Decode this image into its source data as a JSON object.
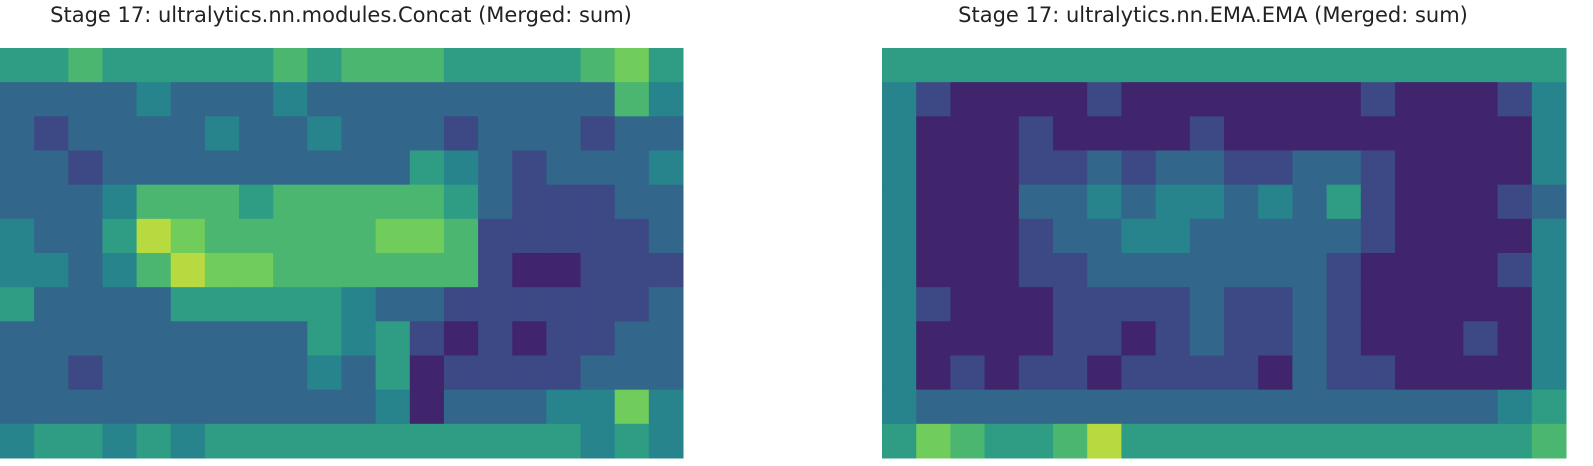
{
  "chart_data": [
    {
      "type": "heatmap",
      "title": "Stage 17: ultralytics.nn.modules.Concat (Merged: sum)",
      "cmap": "viridis",
      "vlim": [
        0,
        9
      ],
      "values": [
        [
          5,
          5,
          6,
          5,
          5,
          5,
          5,
          5,
          6,
          5,
          6,
          6,
          6,
          5,
          5,
          5,
          5,
          6,
          7,
          5
        ],
        [
          3,
          3,
          3,
          3,
          4,
          3,
          3,
          3,
          4,
          3,
          3,
          3,
          3,
          3,
          3,
          3,
          3,
          3,
          6,
          4
        ],
        [
          3,
          2,
          3,
          3,
          3,
          3,
          4,
          3,
          3,
          4,
          3,
          3,
          3,
          2,
          3,
          3,
          3,
          2,
          3,
          3
        ],
        [
          3,
          3,
          2,
          3,
          3,
          3,
          3,
          3,
          3,
          3,
          3,
          3,
          5,
          4,
          3,
          2,
          3,
          3,
          3,
          4
        ],
        [
          3,
          3,
          3,
          4,
          6,
          6,
          6,
          5,
          6,
          6,
          6,
          6,
          6,
          5,
          3,
          2,
          2,
          2,
          3,
          3
        ],
        [
          4,
          3,
          3,
          5,
          8,
          7,
          6,
          6,
          6,
          6,
          6,
          7,
          7,
          6,
          2,
          2,
          2,
          2,
          2,
          3
        ],
        [
          4,
          4,
          3,
          4,
          6,
          8,
          7,
          7,
          6,
          6,
          6,
          6,
          6,
          6,
          2,
          1,
          1,
          2,
          2,
          2
        ],
        [
          5,
          3,
          3,
          3,
          3,
          5,
          5,
          5,
          5,
          5,
          4,
          3,
          3,
          2,
          2,
          2,
          2,
          2,
          2,
          3
        ],
        [
          3,
          3,
          3,
          3,
          3,
          3,
          3,
          3,
          3,
          5,
          4,
          5,
          2,
          1,
          2,
          1,
          2,
          2,
          3,
          3
        ],
        [
          3,
          3,
          2,
          3,
          3,
          3,
          3,
          3,
          3,
          4,
          3,
          5,
          1,
          2,
          2,
          2,
          2,
          3,
          3,
          3
        ],
        [
          3,
          3,
          3,
          3,
          3,
          3,
          3,
          3,
          3,
          3,
          3,
          4,
          1,
          3,
          3,
          3,
          4,
          4,
          7,
          4
        ],
        [
          4,
          5,
          5,
          4,
          5,
          4,
          5,
          5,
          5,
          5,
          5,
          5,
          5,
          5,
          5,
          5,
          5,
          4,
          5,
          4
        ]
      ]
    },
    {
      "type": "heatmap",
      "title": "Stage 17: ultralytics.nn.EMA.EMA (Merged: sum)",
      "cmap": "viridis",
      "vlim": [
        0,
        9
      ],
      "values": [
        [
          5,
          5,
          5,
          5,
          5,
          5,
          5,
          5,
          5,
          5,
          5,
          5,
          5,
          5,
          5,
          5,
          5,
          5,
          5,
          5
        ],
        [
          4,
          2,
          1,
          1,
          1,
          1,
          2,
          1,
          1,
          1,
          1,
          1,
          1,
          1,
          2,
          1,
          1,
          1,
          2,
          4
        ],
        [
          4,
          1,
          1,
          1,
          2,
          1,
          1,
          1,
          1,
          2,
          1,
          1,
          1,
          1,
          1,
          1,
          1,
          1,
          1,
          4
        ],
        [
          4,
          1,
          1,
          1,
          2,
          2,
          3,
          2,
          3,
          3,
          2,
          2,
          3,
          3,
          2,
          1,
          1,
          1,
          1,
          4
        ],
        [
          4,
          1,
          1,
          1,
          3,
          3,
          4,
          3,
          4,
          4,
          3,
          4,
          3,
          5,
          2,
          1,
          1,
          1,
          2,
          3
        ],
        [
          4,
          1,
          1,
          1,
          2,
          3,
          3,
          4,
          4,
          3,
          3,
          3,
          3,
          3,
          2,
          1,
          1,
          1,
          1,
          4
        ],
        [
          4,
          1,
          1,
          1,
          2,
          2,
          3,
          3,
          3,
          3,
          3,
          3,
          3,
          2,
          1,
          1,
          1,
          1,
          2,
          4
        ],
        [
          4,
          2,
          1,
          1,
          1,
          2,
          2,
          2,
          2,
          3,
          2,
          2,
          3,
          2,
          1,
          1,
          1,
          1,
          1,
          4
        ],
        [
          4,
          1,
          1,
          1,
          1,
          2,
          2,
          1,
          2,
          3,
          2,
          2,
          3,
          2,
          1,
          1,
          1,
          2,
          1,
          4
        ],
        [
          4,
          1,
          2,
          1,
          2,
          2,
          1,
          2,
          2,
          2,
          2,
          1,
          3,
          2,
          2,
          1,
          1,
          1,
          1,
          4
        ],
        [
          4,
          3,
          3,
          3,
          3,
          3,
          3,
          3,
          3,
          3,
          3,
          3,
          3,
          3,
          3,
          3,
          3,
          3,
          4,
          5
        ],
        [
          5,
          7,
          6,
          5,
          5,
          6,
          8,
          5,
          5,
          5,
          5,
          5,
          5,
          5,
          5,
          5,
          5,
          5,
          5,
          6
        ]
      ]
    }
  ]
}
